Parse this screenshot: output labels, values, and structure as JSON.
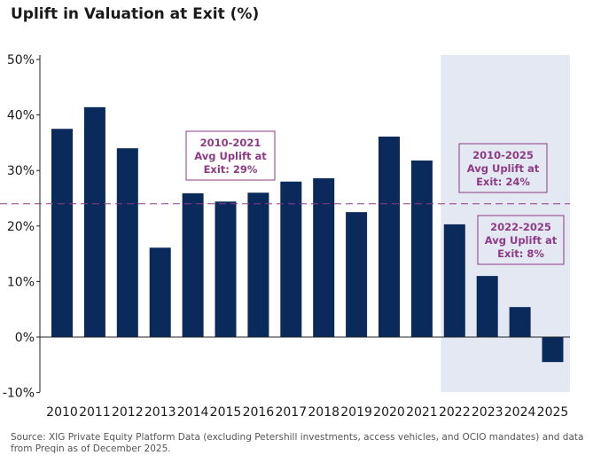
{
  "chart_data": {
    "type": "bar",
    "title": "Uplift in Valuation at Exit (%)",
    "xlabel": "",
    "ylabel": "",
    "ylim": [
      -10,
      50
    ],
    "yticks": [
      "50%",
      "40%",
      "30%",
      "20%",
      "10%",
      "0%",
      "-10%"
    ],
    "ytick_values": [
      50,
      40,
      30,
      20,
      10,
      0,
      -10
    ],
    "categories": [
      "2010",
      "2011",
      "2012",
      "2013",
      "2014",
      "2015",
      "2016",
      "2017",
      "2018",
      "2019",
      "2020",
      "2021",
      "2022",
      "2023",
      "2024",
      "2025"
    ],
    "values": [
      37.5,
      41.4,
      34.0,
      16.1,
      25.9,
      24.4,
      26.0,
      28.0,
      28.6,
      22.5,
      36.1,
      31.8,
      20.3,
      11.0,
      5.4,
      -4.5
    ],
    "bar_color": "#0b2a5c",
    "reference_line": {
      "value": 24,
      "color": "#8e3b85",
      "style": "dashed"
    },
    "shaded_range": {
      "from": "2022",
      "to": "2025",
      "color": "#e3e8f3"
    },
    "annotations": [
      {
        "lines": [
          "2010-2021",
          "Avg Uplift at",
          "Exit: 29%"
        ]
      },
      {
        "lines": [
          "2010-2025",
          "Avg Uplift at",
          "Exit: 24%"
        ]
      },
      {
        "lines": [
          "2022-2025",
          "Avg Uplift at",
          "Exit: 8%"
        ]
      }
    ]
  },
  "source": "Source: XIG Private Equity Platform Data (excluding Petershill investments, access vehicles, and OCIO mandates) and data from Preqin as of December 2025."
}
